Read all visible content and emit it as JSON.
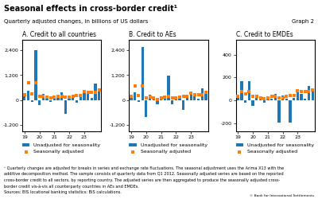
{
  "title": "Seasonal effects in cross-border credit¹",
  "subtitle": "Quarterly adjusted changes, in billions of US dollars",
  "annotations": [
    "Graph 2",
    "¹ Quarterly changes are adjusted for breaks in series and exchange rate fluctuations. The seasonal adjustment uses the Arima X13 with the",
    "additive decomposition method. The sample consists of quarterly data from Q1 2012. Seasonally adjusted series are based on the reported",
    "cross-border credit to all sectors, by reporting country. The adjusted series are then aggregated to produce the seasonally adjusted cross-",
    "border credit vis-à-vis all counterparty countries in AEs and EMDEs.",
    "Sources: BIS locational banking statistics; BIS calculations.",
    "© Bank for International Settlements"
  ],
  "chart_data": [
    {
      "type": "bar",
      "title": "A. Credit to all countries",
      "categories": [
        "19",
        null,
        null,
        null,
        "20",
        null,
        null,
        null,
        "21",
        null,
        null,
        null,
        "22",
        null,
        null,
        null,
        "23",
        null,
        null,
        null,
        null
      ],
      "series": [
        {
          "name": "Unadjusted for seasonality",
          "type": "bar",
          "values": [
            300,
            450,
            -80,
            2400,
            -250,
            280,
            180,
            -100,
            180,
            130,
            380,
            -650,
            200,
            90,
            -120,
            170,
            480,
            320,
            90,
            780,
            460
          ]
        },
        {
          "name": "Seasonally adjusted",
          "type": "scatter",
          "marker": "square",
          "values": [
            260,
            850,
            310,
            820,
            190,
            190,
            140,
            90,
            140,
            190,
            190,
            140,
            140,
            190,
            240,
            240,
            430,
            380,
            380,
            380,
            480
          ]
        }
      ],
      "ylim": [
        -1500,
        2900
      ],
      "yticks": [
        {
          "value": -1200,
          "label": "-1,200"
        },
        0,
        {
          "value": 1200,
          "label": "1,200"
        },
        {
          "value": 2400,
          "label": "2,400"
        }
      ],
      "legend": "upper left"
    },
    {
      "type": "bar",
      "title": "B. Credit to AEs",
      "categories": [
        "19",
        null,
        null,
        null,
        "20",
        null,
        null,
        null,
        "21",
        null,
        null,
        null,
        "22",
        null,
        null,
        null,
        "23",
        null,
        null,
        null,
        null
      ],
      "series": [
        {
          "name": "Unadjusted for seasonality",
          "type": "bar",
          "values": [
            220,
            380,
            -90,
            2550,
            -820,
            250,
            170,
            -180,
            90,
            90,
            1180,
            -190,
            170,
            80,
            -480,
            130,
            370,
            270,
            80,
            570,
            370
          ]
        },
        {
          "name": "Seasonally adjusted",
          "type": "scatter",
          "marker": "square",
          "values": [
            190,
            680,
            230,
            680,
            90,
            130,
            90,
            40,
            90,
            130,
            180,
            90,
            90,
            130,
            180,
            180,
            320,
            270,
            270,
            270,
            370
          ]
        }
      ],
      "ylim": [
        -1500,
        2900
      ],
      "yticks": [
        {
          "value": -1200,
          "label": "-1,200"
        },
        0,
        {
          "value": 1200,
          "label": "1,200"
        },
        {
          "value": 2400,
          "label": "2,400"
        }
      ],
      "legend": "upper left"
    },
    {
      "type": "bar",
      "title": "C. Credit to EMDEs",
      "categories": [
        "19",
        null,
        null,
        null,
        "20",
        null,
        null,
        null,
        "21",
        null,
        null,
        null,
        "22",
        null,
        null,
        null,
        "23",
        null,
        null,
        null,
        null
      ],
      "series": [
        {
          "name": "Unadjusted for seasonality",
          "type": "bar",
          "values": [
            25,
            170,
            -18,
            170,
            -45,
            45,
            35,
            -18,
            25,
            18,
            55,
            -190,
            45,
            18,
            -190,
            25,
            75,
            55,
            18,
            125,
            75
          ]
        },
        {
          "name": "Seasonally adjusted",
          "type": "scatter",
          "marker": "square",
          "values": [
            35,
            75,
            55,
            75,
            35,
            35,
            25,
            18,
            25,
            35,
            35,
            25,
            25,
            35,
            45,
            45,
            85,
            75,
            75,
            75,
            95
          ]
        }
      ],
      "ylim": [
        -270,
        530
      ],
      "yticks": [
        -200,
        0,
        200,
        400
      ],
      "legend": "upper left"
    }
  ]
}
